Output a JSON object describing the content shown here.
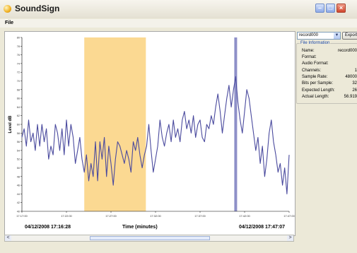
{
  "window": {
    "title": "SoundSign",
    "icon": "speaker-icon",
    "buttons": [
      "minimize-icon",
      "maximize-icon",
      "close-icon"
    ]
  },
  "menu": {
    "items": [
      "File"
    ]
  },
  "colors": {
    "series": "#4a4a9e",
    "highlight": "#fbd992",
    "marker": "#8e90c8",
    "group_legend": "#1c48a8"
  },
  "chart_data": {
    "type": "line",
    "xlabel": "Time (minutes)",
    "ylabel": "Level dB",
    "ylim": [
      40,
      80
    ],
    "x_ticks": [
      "17:17:00",
      "17:22:00",
      "17:27:00",
      "17:32:00",
      "17:37:00",
      "17:42:00",
      "17:47:00"
    ],
    "y_ticks": [
      40,
      42,
      44,
      46,
      48,
      50,
      52,
      54,
      56,
      58,
      60,
      62,
      64,
      66,
      68,
      70,
      72,
      74,
      76,
      78,
      80
    ],
    "x_range_seconds": [
      0,
      1800
    ],
    "highlight_range_seconds": [
      420,
      835
    ],
    "marker_seconds": [
      1440
    ],
    "start_label": "04/12/2008 17:16:28",
    "end_label": "04/12/2008 17:47:07",
    "series": [
      {
        "name": "",
        "values": [
          [
            0,
            57
          ],
          [
            15,
            59
          ],
          [
            30,
            55
          ],
          [
            45,
            61
          ],
          [
            60,
            56
          ],
          [
            75,
            58
          ],
          [
            90,
            54
          ],
          [
            105,
            60
          ],
          [
            120,
            55
          ],
          [
            135,
            60
          ],
          [
            150,
            56
          ],
          [
            165,
            59
          ],
          [
            180,
            52
          ],
          [
            195,
            55
          ],
          [
            210,
            53
          ],
          [
            225,
            60
          ],
          [
            240,
            58
          ],
          [
            255,
            54
          ],
          [
            270,
            59
          ],
          [
            285,
            53
          ],
          [
            300,
            61
          ],
          [
            315,
            55
          ],
          [
            330,
            60
          ],
          [
            345,
            57
          ],
          [
            360,
            51
          ],
          [
            375,
            54
          ],
          [
            390,
            57
          ],
          [
            405,
            52
          ],
          [
            420,
            49
          ],
          [
            435,
            53
          ],
          [
            450,
            47
          ],
          [
            465,
            51
          ],
          [
            480,
            48
          ],
          [
            495,
            56
          ],
          [
            510,
            47
          ],
          [
            525,
            56
          ],
          [
            540,
            52
          ],
          [
            555,
            57
          ],
          [
            570,
            48
          ],
          [
            585,
            55
          ],
          [
            600,
            51
          ],
          [
            615,
            46
          ],
          [
            630,
            52
          ],
          [
            645,
            56
          ],
          [
            660,
            55
          ],
          [
            675,
            53
          ],
          [
            690,
            51
          ],
          [
            705,
            54
          ],
          [
            720,
            52
          ],
          [
            735,
            49
          ],
          [
            750,
            56
          ],
          [
            765,
            54
          ],
          [
            780,
            57
          ],
          [
            795,
            53
          ],
          [
            810,
            50
          ],
          [
            825,
            53
          ],
          [
            840,
            55
          ],
          [
            855,
            60
          ],
          [
            870,
            54
          ],
          [
            885,
            49
          ],
          [
            900,
            52
          ],
          [
            915,
            55
          ],
          [
            930,
            61
          ],
          [
            945,
            57
          ],
          [
            960,
            55
          ],
          [
            975,
            58
          ],
          [
            990,
            60
          ],
          [
            1005,
            56
          ],
          [
            1020,
            61
          ],
          [
            1035,
            57
          ],
          [
            1050,
            59
          ],
          [
            1065,
            56
          ],
          [
            1080,
            61
          ],
          [
            1095,
            63
          ],
          [
            1110,
            59
          ],
          [
            1125,
            61
          ],
          [
            1140,
            58
          ],
          [
            1155,
            62
          ],
          [
            1170,
            57
          ],
          [
            1185,
            60
          ],
          [
            1200,
            61
          ],
          [
            1215,
            57
          ],
          [
            1230,
            56
          ],
          [
            1245,
            60
          ],
          [
            1260,
            59
          ],
          [
            1275,
            62
          ],
          [
            1290,
            60
          ],
          [
            1305,
            64
          ],
          [
            1320,
            67
          ],
          [
            1335,
            63
          ],
          [
            1350,
            58
          ],
          [
            1365,
            62
          ],
          [
            1380,
            66
          ],
          [
            1395,
            69
          ],
          [
            1410,
            64
          ],
          [
            1425,
            68
          ],
          [
            1440,
            71
          ],
          [
            1455,
            65
          ],
          [
            1470,
            61
          ],
          [
            1485,
            58
          ],
          [
            1500,
            63
          ],
          [
            1515,
            68
          ],
          [
            1530,
            66
          ],
          [
            1545,
            62
          ],
          [
            1560,
            58
          ],
          [
            1575,
            54
          ],
          [
            1590,
            57
          ],
          [
            1605,
            51
          ],
          [
            1620,
            55
          ],
          [
            1635,
            48
          ],
          [
            1650,
            52
          ],
          [
            1665,
            58
          ],
          [
            1680,
            61
          ],
          [
            1695,
            56
          ],
          [
            1710,
            53
          ],
          [
            1725,
            49
          ],
          [
            1740,
            51
          ],
          [
            1755,
            46
          ],
          [
            1770,
            50
          ],
          [
            1785,
            44
          ],
          [
            1800,
            53
          ]
        ]
      }
    ]
  },
  "right_panel": {
    "recording_select": "record000",
    "export_label": "Export",
    "group_title": "File Information",
    "fields": [
      {
        "label": "Name:",
        "value": "record000"
      },
      {
        "label": "Format:",
        "value": ""
      },
      {
        "label": "Audio Format:",
        "value": ""
      },
      {
        "label": "Channels:",
        "value": "1"
      },
      {
        "label": "Sample Rate:",
        "value": "48000"
      },
      {
        "label": "Bits per Sample:",
        "value": "32"
      },
      {
        "label": "Expected Length:",
        "value": "26"
      },
      {
        "label": "Actual Length:",
        "value": "56.919"
      }
    ]
  },
  "scrollbar": {
    "left_arrow": "<",
    "right_arrow": ">"
  }
}
